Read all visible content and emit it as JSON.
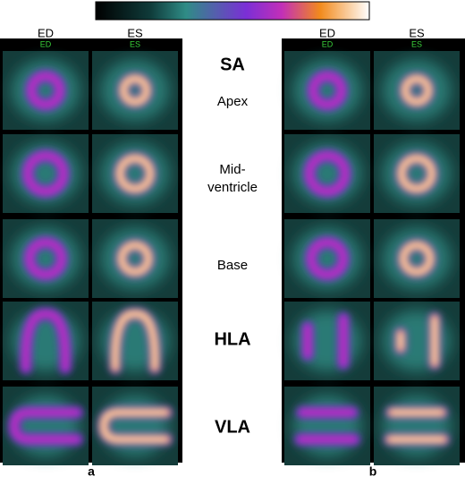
{
  "panels": [
    {
      "label": "a",
      "columns": [
        "ED",
        "ES"
      ],
      "column_tags": [
        "ED",
        "ES"
      ]
    },
    {
      "label": "b",
      "columns": [
        "ED",
        "ES"
      ],
      "column_tags": [
        "ED",
        "ES"
      ]
    }
  ],
  "rows": [
    {
      "heading": "SA",
      "lines": [
        "Apex"
      ]
    },
    {
      "lines": [
        "Mid-",
        "ventricle"
      ]
    },
    {
      "lines": [
        "Base"
      ]
    },
    {
      "heading": "HLA"
    },
    {
      "heading": "VLA"
    }
  ]
}
